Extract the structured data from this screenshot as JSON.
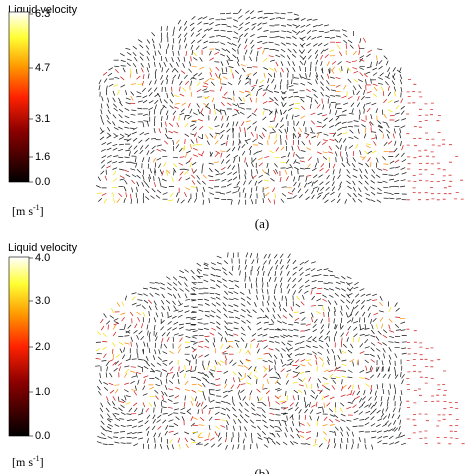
{
  "panels": [
    {
      "colorbar": {
        "title": "Liquid velocity",
        "ticks": [
          "6.3",
          "4.7",
          "3.1",
          "1.6",
          "0.0"
        ],
        "unit": {
          "prefix": "[m s",
          "sup": "-1",
          "suffix": "]"
        }
      },
      "caption": "(a)"
    },
    {
      "colorbar": {
        "title": "Liquid velocity",
        "ticks": [
          "4.0",
          "3.0",
          "2.0",
          "1.0",
          "0.0"
        ],
        "unit": {
          "prefix": "[m s",
          "sup": "-1",
          "suffix": "]"
        }
      },
      "caption": "(b)"
    }
  ]
}
